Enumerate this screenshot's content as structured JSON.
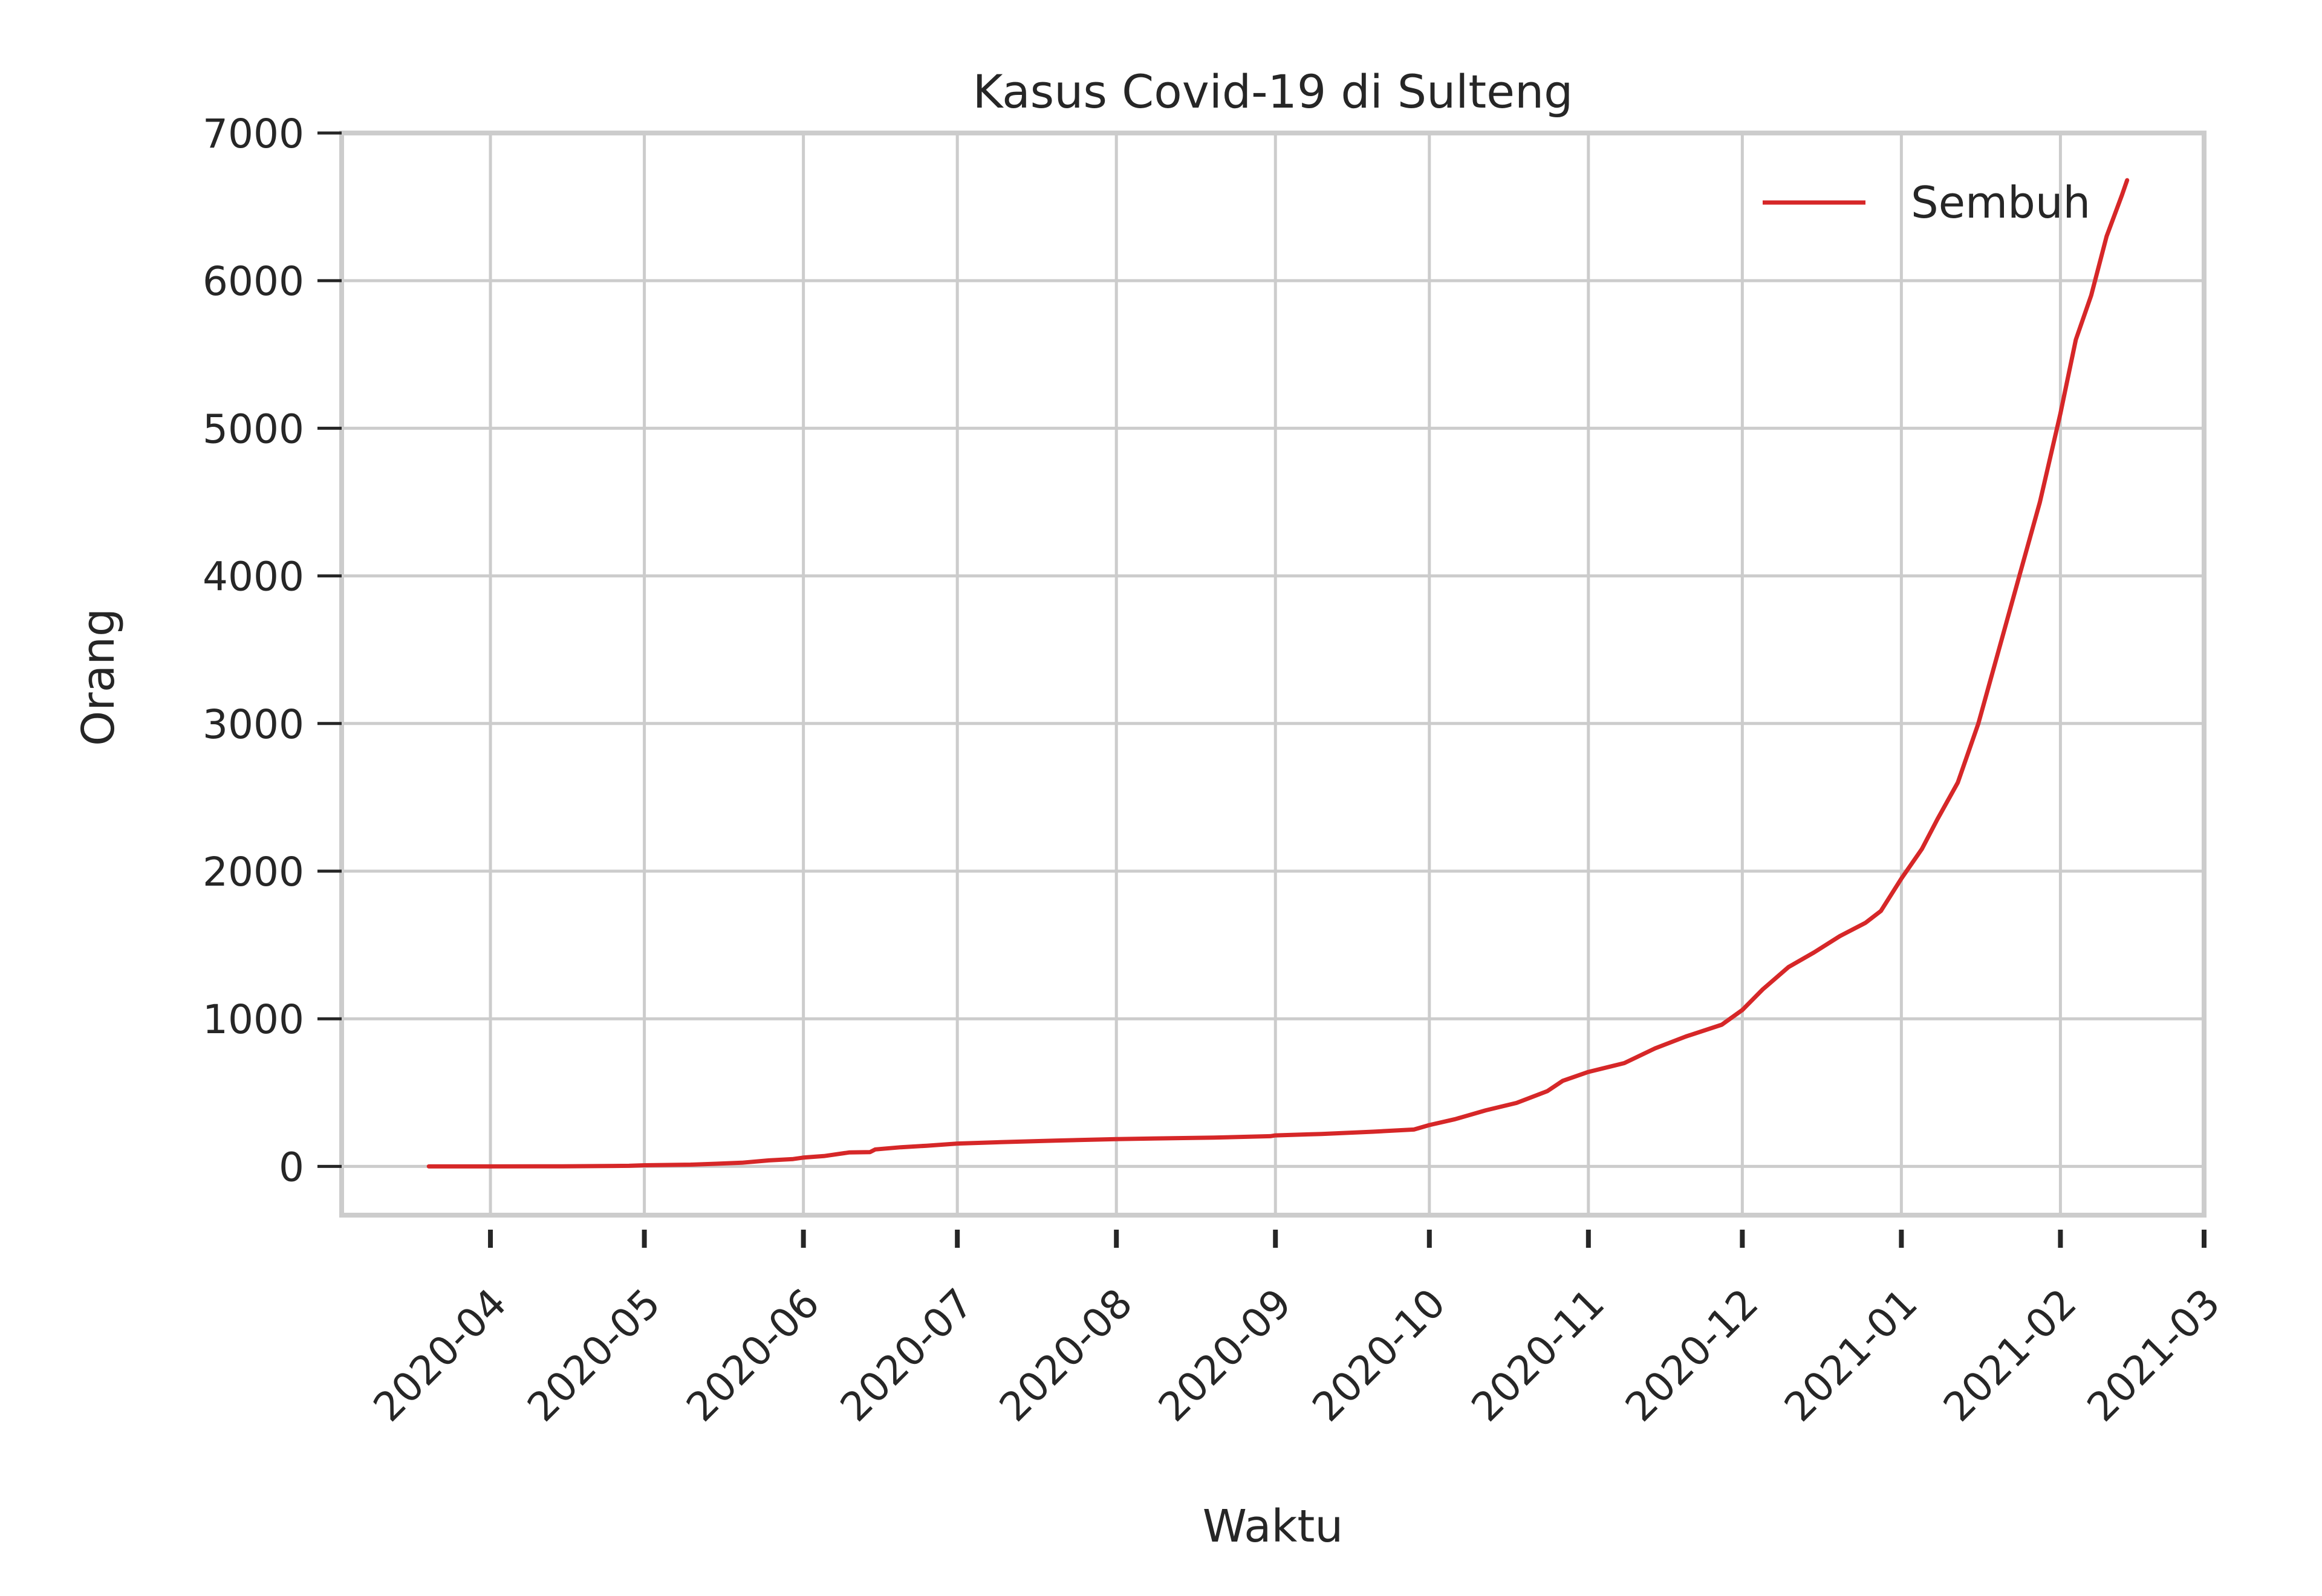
{
  "chart_data": {
    "type": "line",
    "title": "Kasus Covid-19 di Sulteng",
    "xlabel": "Waktu",
    "ylabel": "Orang",
    "x_type": "date",
    "xlim": [
      "2020-03-03",
      "2021-03-01"
    ],
    "ylim": [
      -330,
      7000
    ],
    "yticks": [
      0,
      1000,
      2000,
      3000,
      4000,
      5000,
      6000,
      7000
    ],
    "xticks": [
      "2020-04",
      "2020-05",
      "2020-06",
      "2020-07",
      "2020-08",
      "2020-09",
      "2020-10",
      "2020-11",
      "2020-12",
      "2021-01",
      "2021-02",
      "2021-03"
    ],
    "grid": true,
    "legend_position": "top-right",
    "series": [
      {
        "name": "Sembuh",
        "color": "#d62728",
        "points": [
          [
            "2020-03-20",
            0
          ],
          [
            "2020-04-01",
            0
          ],
          [
            "2020-04-15",
            1
          ],
          [
            "2020-04-28",
            4
          ],
          [
            "2020-05-01",
            8
          ],
          [
            "2020-05-10",
            12
          ],
          [
            "2020-05-15",
            18
          ],
          [
            "2020-05-20",
            25
          ],
          [
            "2020-05-25",
            40
          ],
          [
            "2020-05-30",
            50
          ],
          [
            "2020-06-01",
            60
          ],
          [
            "2020-06-05",
            70
          ],
          [
            "2020-06-10",
            95
          ],
          [
            "2020-06-14",
            97
          ],
          [
            "2020-06-15",
            115
          ],
          [
            "2020-06-20",
            130
          ],
          [
            "2020-06-25",
            140
          ],
          [
            "2020-07-01",
            155
          ],
          [
            "2020-07-10",
            165
          ],
          [
            "2020-07-20",
            175
          ],
          [
            "2020-08-01",
            185
          ],
          [
            "2020-08-10",
            190
          ],
          [
            "2020-08-20",
            195
          ],
          [
            "2020-08-31",
            205
          ],
          [
            "2020-09-01",
            210
          ],
          [
            "2020-09-10",
            220
          ],
          [
            "2020-09-20",
            235
          ],
          [
            "2020-09-28",
            250
          ],
          [
            "2020-10-01",
            280
          ],
          [
            "2020-10-06",
            320
          ],
          [
            "2020-10-12",
            380
          ],
          [
            "2020-10-18",
            430
          ],
          [
            "2020-10-24",
            510
          ],
          [
            "2020-10-27",
            580
          ],
          [
            "2020-11-01",
            640
          ],
          [
            "2020-11-08",
            700
          ],
          [
            "2020-11-14",
            800
          ],
          [
            "2020-11-20",
            880
          ],
          [
            "2020-11-27",
            960
          ],
          [
            "2020-12-01",
            1060
          ],
          [
            "2020-12-05",
            1200
          ],
          [
            "2020-12-10",
            1350
          ],
          [
            "2020-12-15",
            1450
          ],
          [
            "2020-12-20",
            1560
          ],
          [
            "2020-12-25",
            1650
          ],
          [
            "2020-12-28",
            1730
          ],
          [
            "2021-01-01",
            1950
          ],
          [
            "2021-01-05",
            2150
          ],
          [
            "2021-01-08",
            2350
          ],
          [
            "2021-01-12",
            2600
          ],
          [
            "2021-01-16",
            3000
          ],
          [
            "2021-01-20",
            3500
          ],
          [
            "2021-01-24",
            4000
          ],
          [
            "2021-01-28",
            4500
          ],
          [
            "2021-02-01",
            5100
          ],
          [
            "2021-02-04",
            5600
          ],
          [
            "2021-02-07",
            5900
          ],
          [
            "2021-02-10",
            6300
          ],
          [
            "2021-02-13",
            6580
          ],
          [
            "2021-02-14",
            6680
          ]
        ]
      }
    ]
  }
}
